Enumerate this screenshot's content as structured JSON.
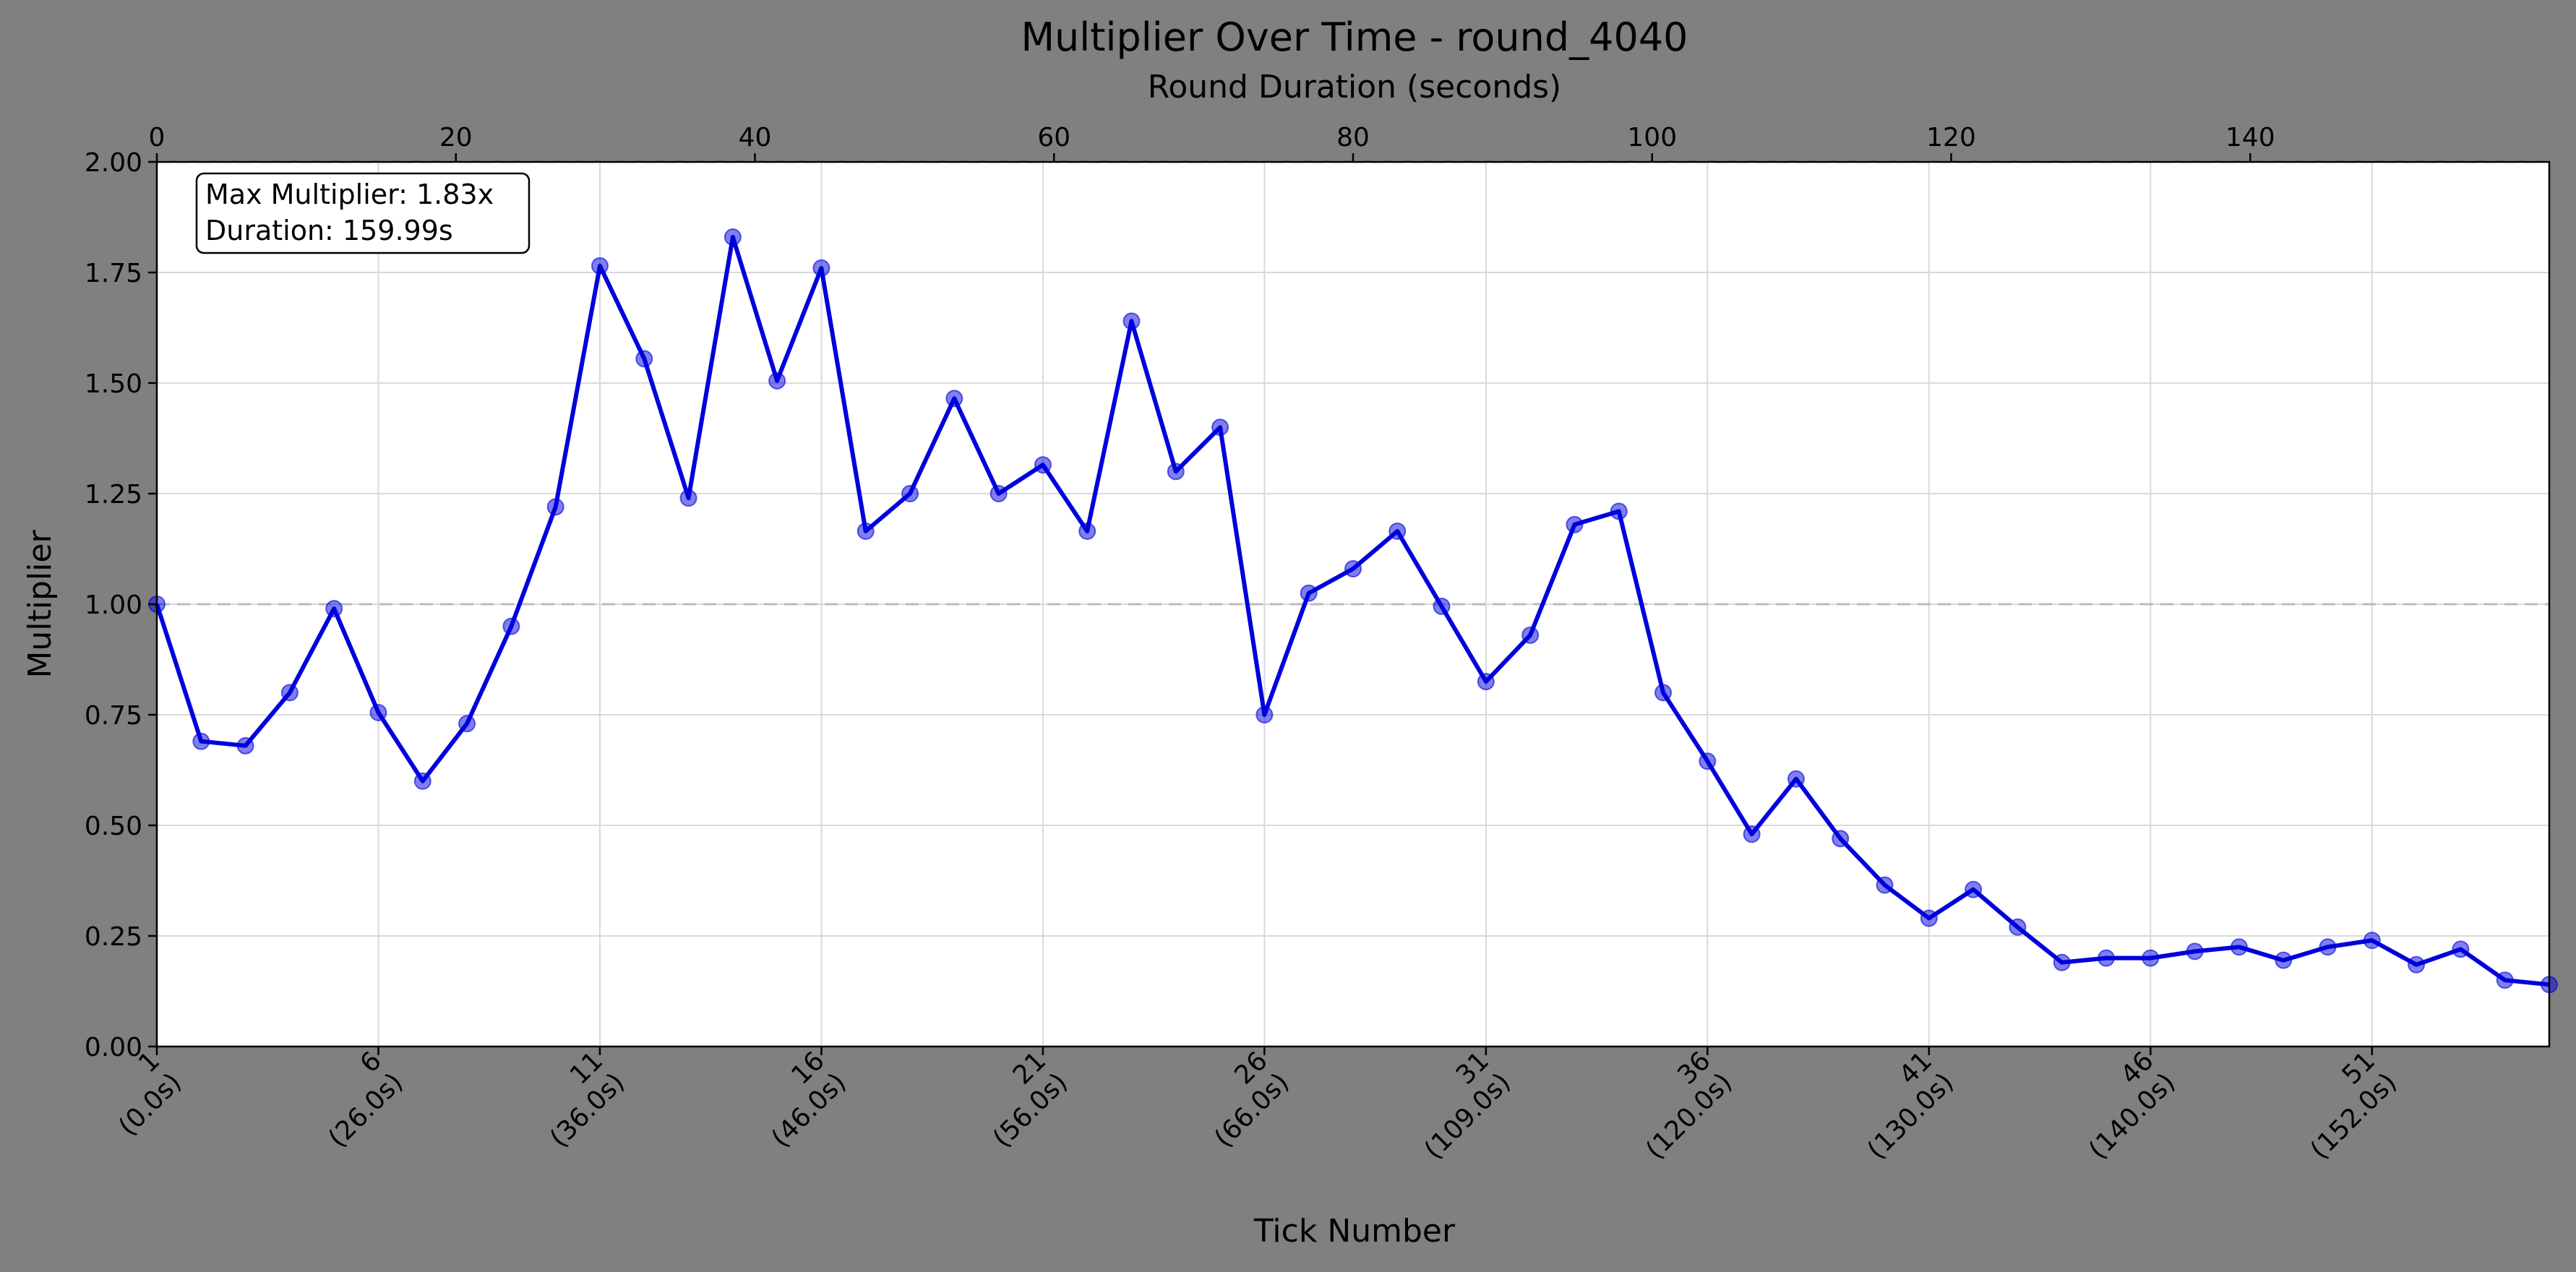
{
  "chart_data": {
    "type": "line",
    "title": "Multiplier Over Time - round_4040",
    "xlabel": "Tick Number",
    "ylabel": "Multiplier",
    "x2label": "Round Duration (seconds)",
    "ylim": [
      0,
      2.0
    ],
    "xlim": [
      1,
      55
    ],
    "x2lim": [
      0,
      160
    ],
    "y_ticks": [
      "0.00",
      "0.25",
      "0.50",
      "0.75",
      "1.00",
      "1.25",
      "1.50",
      "1.75",
      "2.00"
    ],
    "x2_ticks": [
      "0",
      "20",
      "40",
      "60",
      "80",
      "100",
      "120",
      "140"
    ],
    "x_tick_labels": [
      {
        "tick": "1",
        "time": "(0.0s)"
      },
      {
        "tick": "6",
        "time": "(26.0s)"
      },
      {
        "tick": "11",
        "time": "(36.0s)"
      },
      {
        "tick": "16",
        "time": "(46.0s)"
      },
      {
        "tick": "21",
        "time": "(56.0s)"
      },
      {
        "tick": "26",
        "time": "(66.0s)"
      },
      {
        "tick": "31",
        "time": "(109.0s)"
      },
      {
        "tick": "36",
        "time": "(120.0s)"
      },
      {
        "tick": "41",
        "time": "(130.0s)"
      },
      {
        "tick": "46",
        "time": "(140.0s)"
      },
      {
        "tick": "51",
        "time": "(152.0s)"
      }
    ],
    "reference_lines": [
      1.0,
      2.0
    ],
    "grid": true,
    "series": [
      {
        "color": "#0000dd",
        "x": [
          1,
          2,
          3,
          4,
          5,
          6,
          7,
          8,
          9,
          10,
          11,
          12,
          13,
          14,
          15,
          16,
          17,
          18,
          19,
          20,
          21,
          22,
          23,
          24,
          25,
          26,
          27,
          28,
          29,
          30,
          31,
          32,
          33,
          34,
          35,
          36,
          37,
          38,
          39,
          40,
          41,
          42,
          43,
          44,
          45,
          46,
          47,
          48,
          49,
          50,
          51,
          52,
          53,
          54,
          55
        ],
        "values": [
          1.0,
          0.69,
          0.68,
          0.8,
          0.99,
          0.755,
          0.6,
          0.73,
          0.95,
          1.22,
          1.765,
          1.555,
          1.24,
          1.83,
          1.505,
          1.76,
          1.165,
          1.25,
          1.465,
          1.25,
          1.315,
          1.165,
          1.64,
          1.3,
          1.4,
          0.75,
          1.025,
          1.08,
          1.165,
          0.995,
          0.825,
          0.93,
          1.18,
          1.21,
          0.8,
          0.645,
          0.48,
          0.605,
          0.47,
          0.365,
          0.29,
          0.355,
          0.27,
          0.19,
          0.2,
          0.2,
          0.215,
          0.225,
          0.195,
          0.225,
          0.24,
          0.185,
          0.22,
          0.15,
          0.14
        ]
      }
    ],
    "annotation": {
      "line1": "Max Multiplier: 1.83x",
      "line2": "Duration: 159.99s"
    }
  }
}
